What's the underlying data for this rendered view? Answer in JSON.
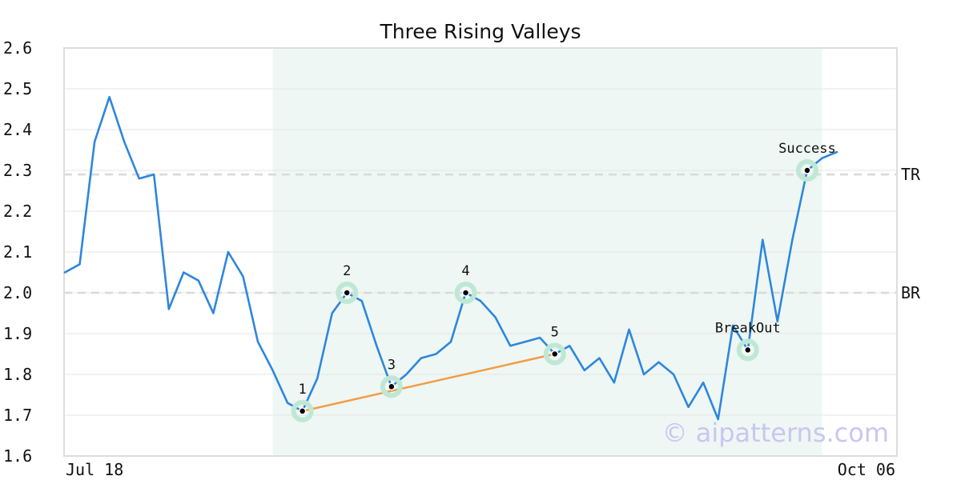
{
  "chart_data": {
    "type": "line",
    "title": "Three Rising Valleys",
    "watermark": "© aipatterns.com",
    "ylim": [
      1.6,
      2.6
    ],
    "yticks": [
      "1.6",
      "1.7",
      "1.8",
      "1.9",
      "2.0",
      "2.1",
      "2.2",
      "2.3",
      "2.4",
      "2.5",
      "2.6"
    ],
    "x_start_label": "Jul 18",
    "x_end_label": "Oct 06",
    "grid": true,
    "colors": {
      "line": "#2e86de",
      "trend": "#f39c45",
      "highlight": "#eef7f3",
      "marker_halo": "#bfe8d4",
      "level_line": "#d9d9d9"
    },
    "series": [
      {
        "values": [
          2.05,
          2.07,
          2.37,
          2.48,
          2.37,
          2.28,
          2.29,
          1.96,
          2.05,
          2.03,
          1.95,
          2.1,
          2.04,
          1.88,
          1.81,
          1.73,
          1.71,
          1.79,
          1.95,
          2.0,
          1.98,
          1.87,
          1.77,
          1.8,
          1.84,
          1.85,
          1.88,
          2.0,
          1.98,
          1.94,
          1.87,
          1.88,
          1.89,
          1.85,
          1.87,
          1.81,
          1.84,
          1.78,
          1.91,
          1.8,
          1.83,
          1.8,
          1.72,
          1.78,
          1.69,
          1.92,
          1.86,
          2.13,
          1.93,
          2.13,
          2.3,
          2.33,
          2.345
        ]
      }
    ],
    "highlight_range": [
      14,
      51
    ],
    "levels": [
      {
        "label": "TR",
        "value": 2.29
      },
      {
        "label": "BR",
        "value": 2.0
      }
    ],
    "points": [
      {
        "label": "1",
        "index": 16,
        "value": 1.71
      },
      {
        "label": "2",
        "index": 19,
        "value": 2.0
      },
      {
        "label": "3",
        "index": 22,
        "value": 1.77
      },
      {
        "label": "4",
        "index": 27,
        "value": 2.0
      },
      {
        "label": "5",
        "index": 33,
        "value": 1.85
      },
      {
        "label": "BreakOut",
        "index": 46,
        "value": 1.86
      },
      {
        "label": "Success",
        "index": 50,
        "value": 2.3
      }
    ],
    "trendline": {
      "from_index": 16,
      "from_value": 1.71,
      "to_index": 33,
      "to_value": 1.85
    }
  }
}
